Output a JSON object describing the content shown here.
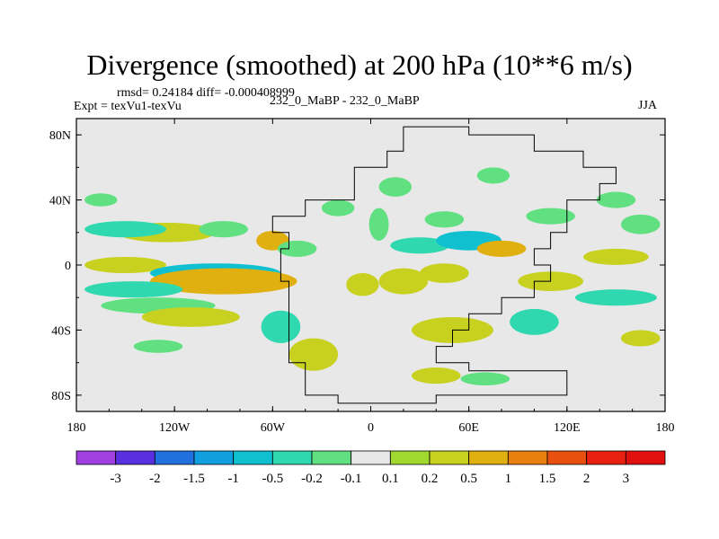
{
  "chart_data": {
    "type": "heatmap",
    "title": "Divergence (smoothed) at 200 hPa (10**6 m/s)",
    "subtitle_left": "rmsd= 0.24184 diff= -0.000408999",
    "expt_label": "Expt = texVu1-texVu",
    "case_label": "232_0_MaBP - 232_0_MaBP",
    "season": "JJA",
    "x_ticks": [
      "180",
      "120W",
      "60W",
      "0",
      "60E",
      "120E",
      "180"
    ],
    "y_ticks": [
      "80N",
      "40N",
      "0",
      "40S",
      "80S"
    ],
    "xlim": [
      -180,
      180
    ],
    "ylim": [
      -90,
      90
    ],
    "colorbar": {
      "labels": [
        "-3",
        "-2",
        "-1.5",
        "-1",
        "-0.5",
        "-0.2",
        "-0.1",
        "0.1",
        "0.2",
        "0.5",
        "1",
        "1.5",
        "2",
        "3"
      ],
      "colors": [
        "#a040e0",
        "#5830e0",
        "#2070e0",
        "#10a0e0",
        "#10c0d0",
        "#30d8b0",
        "#60e080",
        "#e8e8e8",
        "#a0d830",
        "#c8d020",
        "#e0b010",
        "#e88010",
        "#e85010",
        "#e82010",
        "#e01010"
      ]
    },
    "background_color": "#e8e8e8",
    "blobs": [
      {
        "lon": -125,
        "lat": 20,
        "rx": 30,
        "ry": 6,
        "value": 0.4
      },
      {
        "lon": -150,
        "lat": 22,
        "rx": 25,
        "ry": 5,
        "value": -0.3
      },
      {
        "lon": -90,
        "lat": 22,
        "rx": 15,
        "ry": 5,
        "value": -0.2
      },
      {
        "lon": -60,
        "lat": 15,
        "rx": 10,
        "ry": 6,
        "value": 0.5
      },
      {
        "lon": -150,
        "lat": 0,
        "rx": 25,
        "ry": 5,
        "value": 0.3
      },
      {
        "lon": -95,
        "lat": -5,
        "rx": 40,
        "ry": 6,
        "value": -0.8
      },
      {
        "lon": -90,
        "lat": -10,
        "rx": 45,
        "ry": 8,
        "value": 0.7
      },
      {
        "lon": -145,
        "lat": -15,
        "rx": 30,
        "ry": 5,
        "value": -0.4
      },
      {
        "lon": -130,
        "lat": -25,
        "rx": 35,
        "ry": 5,
        "value": -0.2
      },
      {
        "lon": -110,
        "lat": -32,
        "rx": 30,
        "ry": 6,
        "value": 0.3
      },
      {
        "lon": -130,
        "lat": -50,
        "rx": 15,
        "ry": 4,
        "value": -0.2
      },
      {
        "lon": -55,
        "lat": -38,
        "rx": 12,
        "ry": 10,
        "value": -0.3
      },
      {
        "lon": -35,
        "lat": -55,
        "rx": 15,
        "ry": 10,
        "value": 0.3
      },
      {
        "lon": -5,
        "lat": -12,
        "rx": 10,
        "ry": 7,
        "value": 0.4
      },
      {
        "lon": 20,
        "lat": -10,
        "rx": 15,
        "ry": 8,
        "value": 0.3
      },
      {
        "lon": 5,
        "lat": 25,
        "rx": 6,
        "ry": 10,
        "value": -0.2
      },
      {
        "lon": 30,
        "lat": 12,
        "rx": 18,
        "ry": 5,
        "value": -0.4
      },
      {
        "lon": 60,
        "lat": 15,
        "rx": 20,
        "ry": 6,
        "value": -0.6
      },
      {
        "lon": 80,
        "lat": 10,
        "rx": 15,
        "ry": 5,
        "value": 0.6
      },
      {
        "lon": 45,
        "lat": -5,
        "rx": 15,
        "ry": 6,
        "value": 0.4
      },
      {
        "lon": 50,
        "lat": -40,
        "rx": 25,
        "ry": 8,
        "value": 0.3
      },
      {
        "lon": 40,
        "lat": -68,
        "rx": 15,
        "ry": 5,
        "value": 0.2
      },
      {
        "lon": 70,
        "lat": -70,
        "rx": 15,
        "ry": 4,
        "value": -0.2
      },
      {
        "lon": 110,
        "lat": -10,
        "rx": 20,
        "ry": 6,
        "value": 0.3
      },
      {
        "lon": 100,
        "lat": -35,
        "rx": 15,
        "ry": 8,
        "value": -0.3
      },
      {
        "lon": 110,
        "lat": 30,
        "rx": 15,
        "ry": 5,
        "value": -0.2
      },
      {
        "lon": 150,
        "lat": 5,
        "rx": 20,
        "ry": 5,
        "value": 0.3
      },
      {
        "lon": 150,
        "lat": -20,
        "rx": 25,
        "ry": 5,
        "value": -0.3
      },
      {
        "lon": 165,
        "lat": -45,
        "rx": 12,
        "ry": 5,
        "value": 0.3
      },
      {
        "lon": 165,
        "lat": 25,
        "rx": 12,
        "ry": 6,
        "value": -0.2
      },
      {
        "lon": 15,
        "lat": 48,
        "rx": 10,
        "ry": 6,
        "value": -0.2
      },
      {
        "lon": 45,
        "lat": 28,
        "rx": 12,
        "ry": 5,
        "value": -0.2
      },
      {
        "lon": 75,
        "lat": 55,
        "rx": 10,
        "ry": 5,
        "value": -0.2
      },
      {
        "lon": 150,
        "lat": 40,
        "rx": 12,
        "ry": 5,
        "value": -0.2
      },
      {
        "lon": -165,
        "lat": 40,
        "rx": 10,
        "ry": 4,
        "value": -0.2
      },
      {
        "lon": -20,
        "lat": 35,
        "rx": 10,
        "ry": 5,
        "value": -0.2
      },
      {
        "lon": -45,
        "lat": 10,
        "rx": 12,
        "ry": 5,
        "value": -0.2
      }
    ],
    "outline_lonlat": [
      [
        -40,
        30
      ],
      [
        -40,
        40
      ],
      [
        -10,
        40
      ],
      [
        -10,
        60
      ],
      [
        10,
        60
      ],
      [
        10,
        70
      ],
      [
        20,
        70
      ],
      [
        20,
        85
      ],
      [
        60,
        85
      ],
      [
        60,
        80
      ],
      [
        100,
        80
      ],
      [
        100,
        70
      ],
      [
        130,
        70
      ],
      [
        130,
        60
      ],
      [
        150,
        60
      ],
      [
        150,
        50
      ],
      [
        140,
        50
      ],
      [
        140,
        40
      ],
      [
        120,
        40
      ],
      [
        120,
        20
      ],
      [
        110,
        20
      ],
      [
        110,
        10
      ],
      [
        100,
        10
      ],
      [
        100,
        0
      ],
      [
        110,
        0
      ],
      [
        110,
        -10
      ],
      [
        100,
        -10
      ],
      [
        100,
        -20
      ],
      [
        80,
        -20
      ],
      [
        80,
        -30
      ],
      [
        60,
        -30
      ],
      [
        60,
        -40
      ],
      [
        50,
        -40
      ],
      [
        50,
        -50
      ],
      [
        40,
        -50
      ],
      [
        40,
        -60
      ],
      [
        60,
        -60
      ],
      [
        60,
        -65
      ],
      [
        120,
        -65
      ],
      [
        120,
        -80
      ],
      [
        40,
        -80
      ],
      [
        40,
        -85
      ],
      [
        -20,
        -85
      ],
      [
        -20,
        -80
      ],
      [
        -40,
        -80
      ],
      [
        -40,
        -60
      ],
      [
        -50,
        -60
      ],
      [
        -50,
        -10
      ],
      [
        -55,
        -10
      ],
      [
        -55,
        10
      ],
      [
        -50,
        10
      ],
      [
        -50,
        20
      ],
      [
        -60,
        20
      ],
      [
        -60,
        30
      ],
      [
        -40,
        30
      ]
    ]
  }
}
